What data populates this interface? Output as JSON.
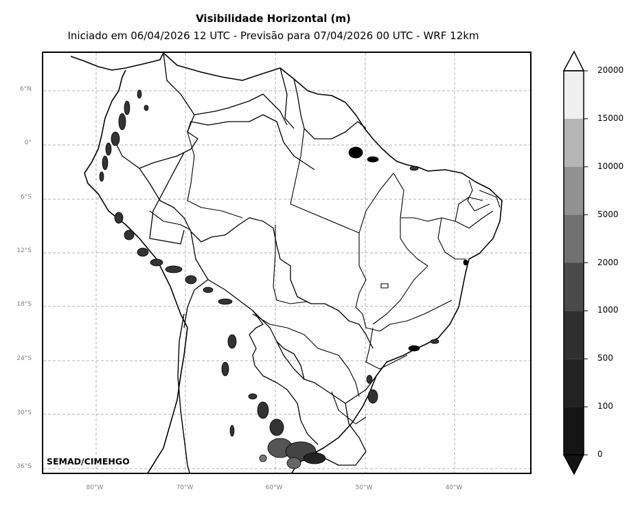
{
  "header": {
    "title": "Visibilidade Horizontal (m)",
    "subtitle": "Iniciado em 06/04/2026 12 UTC - Previsão para 07/04/2026 00 UTC - WRF 12km"
  },
  "map": {
    "lat_labels": [
      "6°N",
      "0°",
      "6°S",
      "12°S",
      "18°S",
      "24°S",
      "30°S",
      "36°S"
    ],
    "lon_labels": [
      "80°W",
      "70°W",
      "60°W",
      "50°W",
      "40°W"
    ],
    "credit": "SEMAD/CIMEHGO",
    "grid": true,
    "colors": {
      "border": "#000000",
      "grid": "#b0b0b0",
      "label": "#808080"
    }
  },
  "colorbar": {
    "levels": [
      "20000",
      "15000",
      "10000",
      "5000",
      "2000",
      "1000",
      "500",
      "100",
      "0"
    ],
    "fill_colors": [
      "#f0f0f0",
      "#b5b5b5",
      "#919191",
      "#717171",
      "#4a4a4a",
      "#2f2f2f",
      "#222222",
      "#141414"
    ],
    "extend": "both"
  }
}
